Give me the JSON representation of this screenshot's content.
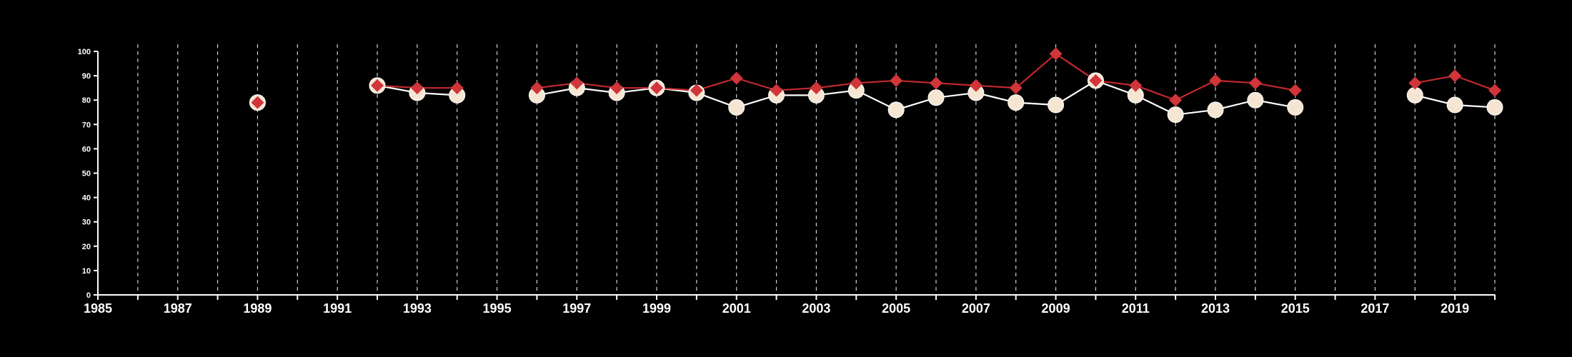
{
  "chart_data": {
    "type": "line",
    "title": "",
    "xlabel": "",
    "ylabel": "",
    "xlim": [
      1985,
      2020
    ],
    "ylim": [
      0,
      100
    ],
    "x_ticks": [
      1985,
      1987,
      1989,
      1991,
      1993,
      1995,
      1997,
      1999,
      2001,
      2003,
      2005,
      2007,
      2009,
      2011,
      2013,
      2015,
      2017,
      2019
    ],
    "y_ticks": [
      0,
      10,
      20,
      30,
      40,
      50,
      60,
      70,
      80,
      90,
      100
    ],
    "grid": "vertical dashed lines at each year",
    "background": "#000000",
    "axis_color": "#ffffff",
    "series": [
      {
        "color": "#f5e6d3",
        "line_color": "#ffffff",
        "marker": "circle",
        "points": [
          {
            "x": 1989,
            "y": 79
          },
          {
            "x": 1992,
            "y": 86
          },
          {
            "x": 1993,
            "y": 83
          },
          {
            "x": 1994,
            "y": 82
          },
          {
            "x": 1996,
            "y": 82
          },
          {
            "x": 1997,
            "y": 85
          },
          {
            "x": 1998,
            "y": 83
          },
          {
            "x": 1999,
            "y": 85
          },
          {
            "x": 2000,
            "y": 83
          },
          {
            "x": 2001,
            "y": 77
          },
          {
            "x": 2002,
            "y": 82
          },
          {
            "x": 2003,
            "y": 82
          },
          {
            "x": 2004,
            "y": 84
          },
          {
            "x": 2005,
            "y": 76
          },
          {
            "x": 2006,
            "y": 81
          },
          {
            "x": 2007,
            "y": 83
          },
          {
            "x": 2008,
            "y": 79
          },
          {
            "x": 2009,
            "y": 78
          },
          {
            "x": 2010,
            "y": 88
          },
          {
            "x": 2011,
            "y": 82
          },
          {
            "x": 2012,
            "y": 74
          },
          {
            "x": 2013,
            "y": 76
          },
          {
            "x": 2014,
            "y": 80
          },
          {
            "x": 2015,
            "y": 77
          },
          {
            "x": 2018,
            "y": 82
          },
          {
            "x": 2019,
            "y": 78
          },
          {
            "x": 2020,
            "y": 77
          }
        ]
      },
      {
        "color": "#d0353a",
        "line_color": "#c0282e",
        "marker": "diamond",
        "points": [
          {
            "x": 1989,
            "y": 79
          },
          {
            "x": 1992,
            "y": 86
          },
          {
            "x": 1993,
            "y": 85
          },
          {
            "x": 1994,
            "y": 85
          },
          {
            "x": 1996,
            "y": 85
          },
          {
            "x": 1997,
            "y": 87
          },
          {
            "x": 1998,
            "y": 85
          },
          {
            "x": 1999,
            "y": 85
          },
          {
            "x": 2000,
            "y": 84
          },
          {
            "x": 2001,
            "y": 89
          },
          {
            "x": 2002,
            "y": 84
          },
          {
            "x": 2003,
            "y": 85
          },
          {
            "x": 2004,
            "y": 87
          },
          {
            "x": 2005,
            "y": 88
          },
          {
            "x": 2006,
            "y": 87
          },
          {
            "x": 2007,
            "y": 86
          },
          {
            "x": 2008,
            "y": 85
          },
          {
            "x": 2009,
            "y": 99
          },
          {
            "x": 2010,
            "y": 88
          },
          {
            "x": 2011,
            "y": 86
          },
          {
            "x": 2012,
            "y": 80
          },
          {
            "x": 2013,
            "y": 88
          },
          {
            "x": 2014,
            "y": 87
          },
          {
            "x": 2015,
            "y": 84
          },
          {
            "x": 2018,
            "y": 87
          },
          {
            "x": 2019,
            "y": 90
          },
          {
            "x": 2020,
            "y": 84
          }
        ]
      }
    ]
  }
}
